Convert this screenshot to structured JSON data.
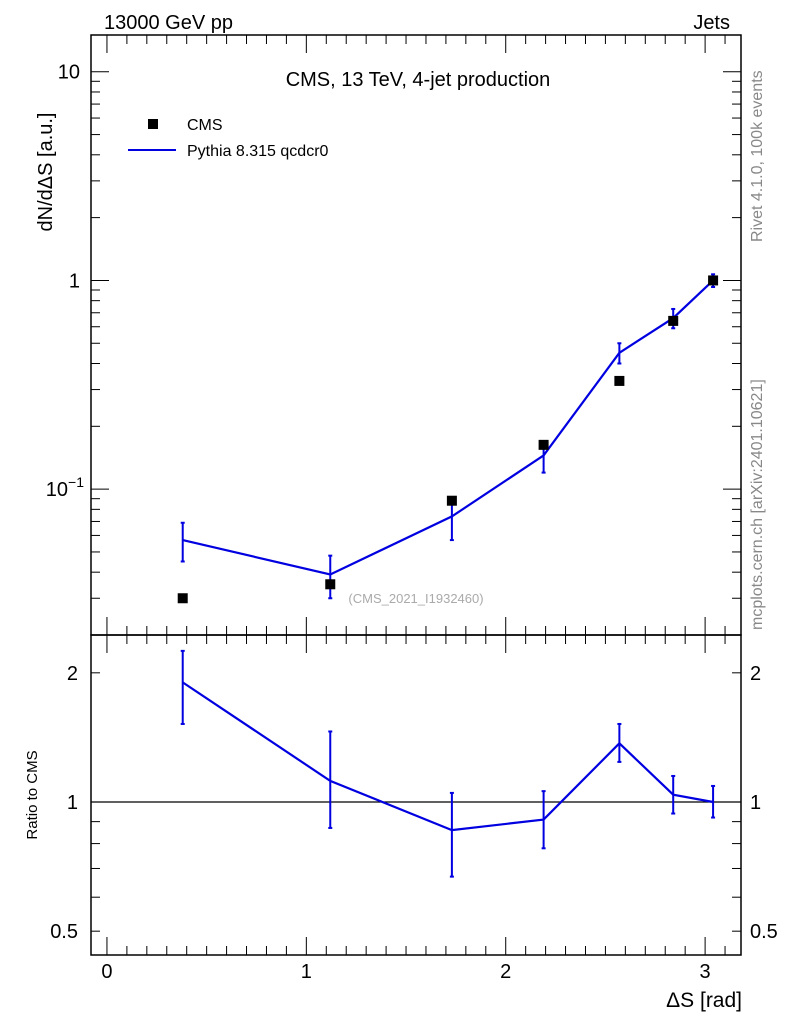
{
  "header": {
    "left": "13000 GeV pp",
    "right": "Jets"
  },
  "side_text": {
    "top": "Rivet 4.1.0,  100k events",
    "bottom": "mcplots.cern.ch [arXiv:2401.10621]"
  },
  "chart_data": [
    {
      "type": "scatter",
      "title": "CMS, 13 TeV, 4-jet production",
      "ylabel": "dN/dΔS [a.u.]",
      "xlabel": "",
      "yscale": "log",
      "ylim": [
        0.02,
        15
      ],
      "xlim": [
        -0.08,
        3.18
      ],
      "annotation": "(CMS_2021_I1932460)",
      "y_ticks": [
        {
          "value": 10,
          "label": "10"
        },
        {
          "value": 1,
          "label": "1"
        },
        {
          "value": 0.1,
          "label": "10^-1"
        }
      ],
      "legend": {
        "placement": "top-left",
        "entries": [
          {
            "label": "CMS",
            "marker": "square",
            "color": "#000000"
          },
          {
            "label": "Pythia 8.315 qcdcr0",
            "marker": "line",
            "color": "#0000e0"
          }
        ]
      },
      "series": [
        {
          "name": "CMS",
          "color": "#000000",
          "x": [
            0.38,
            1.12,
            1.73,
            2.19,
            2.57,
            2.84,
            3.04
          ],
          "y": [
            0.03,
            0.035,
            0.088,
            0.163,
            0.33,
            0.64,
            1.0
          ]
        },
        {
          "name": "Pythia 8.315 qcdcr0",
          "color": "#0000e0",
          "x": [
            0.38,
            1.12,
            1.73,
            2.19,
            2.57,
            2.84,
            3.04
          ],
          "y": [
            0.057,
            0.039,
            0.074,
            0.145,
            0.45,
            0.66,
            1.0
          ],
          "err_low": [
            0.045,
            0.03,
            0.057,
            0.12,
            0.4,
            0.59,
            0.93
          ],
          "err_high": [
            0.069,
            0.048,
            0.091,
            0.17,
            0.5,
            0.73,
            1.07
          ]
        }
      ]
    },
    {
      "type": "line",
      "title": "",
      "ylabel": "Ratio to CMS",
      "xlabel": "ΔS [rad]",
      "yscale": "log",
      "ylim": [
        0.44,
        2.45
      ],
      "xlim": [
        -0.08,
        3.18
      ],
      "reference_line": 1,
      "y_ticks": [
        {
          "value": 2,
          "label": "2"
        },
        {
          "value": 1,
          "label": "1"
        },
        {
          "value": 0.5,
          "label": "0.5"
        }
      ],
      "x_ticks": [
        {
          "value": 0,
          "label": "0"
        },
        {
          "value": 1,
          "label": "1"
        },
        {
          "value": 2,
          "label": "2"
        },
        {
          "value": 3,
          "label": "3"
        }
      ],
      "series": [
        {
          "name": "Pythia 8.315 qcdcr0 / CMS",
          "color": "#0000e0",
          "x": [
            0.38,
            1.12,
            1.73,
            2.19,
            2.57,
            2.84,
            3.04
          ],
          "y": [
            1.9,
            1.12,
            0.86,
            0.91,
            1.37,
            1.04,
            1.0
          ],
          "err_low": [
            1.52,
            0.87,
            0.67,
            0.78,
            1.24,
            0.94,
            0.92
          ],
          "err_high": [
            2.25,
            1.46,
            1.05,
            1.06,
            1.52,
            1.15,
            1.09
          ]
        }
      ]
    }
  ]
}
